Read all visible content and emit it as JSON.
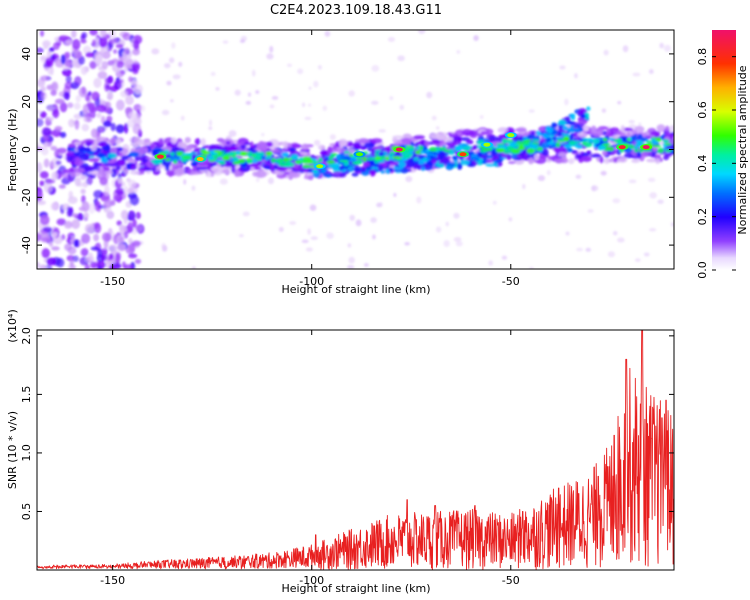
{
  "figure_title": "C2E4.2023.109.18.43.G11",
  "chart_data": [
    {
      "type": "heatmap",
      "title": "C2E4.2023.109.18.43.G11",
      "xlabel": "Height of straight line (km)",
      "ylabel": "Frequency (Hz)",
      "xlim": [
        -169,
        -9
      ],
      "ylim": [
        -50,
        50
      ],
      "x_ticks": [
        -150,
        -100,
        -50
      ],
      "y_ticks": [
        -40,
        -20,
        0,
        20,
        40
      ],
      "colorbar": {
        "label": "Normalized spectral amplitude",
        "range": [
          0,
          0.9
        ],
        "ticks": [
          "0.0",
          "0.2",
          "0.4",
          "0.6",
          "0.8"
        ],
        "colormap": [
          "#ffffff",
          "#d8b8f8",
          "#7a00ff",
          "#0020ff",
          "#00c8ff",
          "#00e890",
          "#40ff00",
          "#d8ff00",
          "#ffb000",
          "#ff3000",
          "#f0106a"
        ]
      },
      "band_center_hz": [
        {
          "x": -160,
          "y": -3
        },
        {
          "x": -150,
          "y": -3
        },
        {
          "x": -140,
          "y": -3
        },
        {
          "x": -120,
          "y": -3
        },
        {
          "x": -100,
          "y": -5
        },
        {
          "x": -80,
          "y": -2
        },
        {
          "x": -60,
          "y": 1
        },
        {
          "x": -40,
          "y": 2
        },
        {
          "x": -20,
          "y": 2
        },
        {
          "x": -10,
          "y": 2
        }
      ],
      "secondary_band_hz": [
        {
          "x": -100,
          "y": -8
        },
        {
          "x": -70,
          "y": -4
        },
        {
          "x": -50,
          "y": -2
        },
        {
          "x": -40,
          "y": 6
        },
        {
          "x": -30,
          "y": 15
        }
      ],
      "peak_points": [
        {
          "x": -138,
          "y": -3,
          "v": 0.85
        },
        {
          "x": -128,
          "y": -4,
          "v": 0.7
        },
        {
          "x": -98,
          "y": -7,
          "v": 0.6
        },
        {
          "x": -88,
          "y": -2,
          "v": 0.55
        },
        {
          "x": -78,
          "y": 0,
          "v": 0.88
        },
        {
          "x": -62,
          "y": -2,
          "v": 0.8
        },
        {
          "x": -56,
          "y": 2,
          "v": 0.6
        },
        {
          "x": -50,
          "y": 6,
          "v": 0.6
        },
        {
          "x": -22,
          "y": 1,
          "v": 0.85
        },
        {
          "x": -16,
          "y": 1,
          "v": 0.9
        }
      ]
    },
    {
      "type": "line",
      "xlabel": "Height of straight line (km)",
      "ylabel": "SNR (10 * v/v)",
      "y_multiplier": "(x10⁴)",
      "xlim": [
        -169,
        -9
      ],
      "ylim": [
        0,
        2.05
      ],
      "x_ticks": [
        -150,
        -100,
        -50
      ],
      "y_ticks": [
        0.5,
        1.0,
        1.5,
        2.0
      ],
      "y_tick_labels": [
        "0.5",
        "1.0",
        "1.5",
        "2.0"
      ],
      "series": [
        {
          "color": "#e82020",
          "envelope": [
            {
              "x": -169,
              "y": 0.04
            },
            {
              "x": -150,
              "y": 0.05
            },
            {
              "x": -140,
              "y": 0.08
            },
            {
              "x": -120,
              "y": 0.12
            },
            {
              "x": -110,
              "y": 0.15
            },
            {
              "x": -100,
              "y": 0.22
            },
            {
              "x": -90,
              "y": 0.35
            },
            {
              "x": -80,
              "y": 0.48
            },
            {
              "x": -70,
              "y": 0.5
            },
            {
              "x": -60,
              "y": 0.52
            },
            {
              "x": -50,
              "y": 0.48
            },
            {
              "x": -40,
              "y": 0.68
            },
            {
              "x": -30,
              "y": 0.85
            },
            {
              "x": -25,
              "y": 1.1
            },
            {
              "x": -20,
              "y": 1.75
            },
            {
              "x": -15,
              "y": 1.55
            },
            {
              "x": -9,
              "y": 1.35
            }
          ],
          "peaks": [
            {
              "x": -99,
              "y": 0.3
            },
            {
              "x": -76,
              "y": 0.6
            },
            {
              "x": -69,
              "y": 0.55
            },
            {
              "x": -59,
              "y": 0.55
            },
            {
              "x": -47,
              "y": 0.5
            },
            {
              "x": -38,
              "y": 0.7
            },
            {
              "x": -28,
              "y": 0.8
            },
            {
              "x": -24,
              "y": 1.15
            },
            {
              "x": -21,
              "y": 1.8
            },
            {
              "x": -17,
              "y": 2.05
            },
            {
              "x": -12,
              "y": 1.3
            },
            {
              "x": -11,
              "y": 1.45
            }
          ]
        }
      ]
    }
  ]
}
